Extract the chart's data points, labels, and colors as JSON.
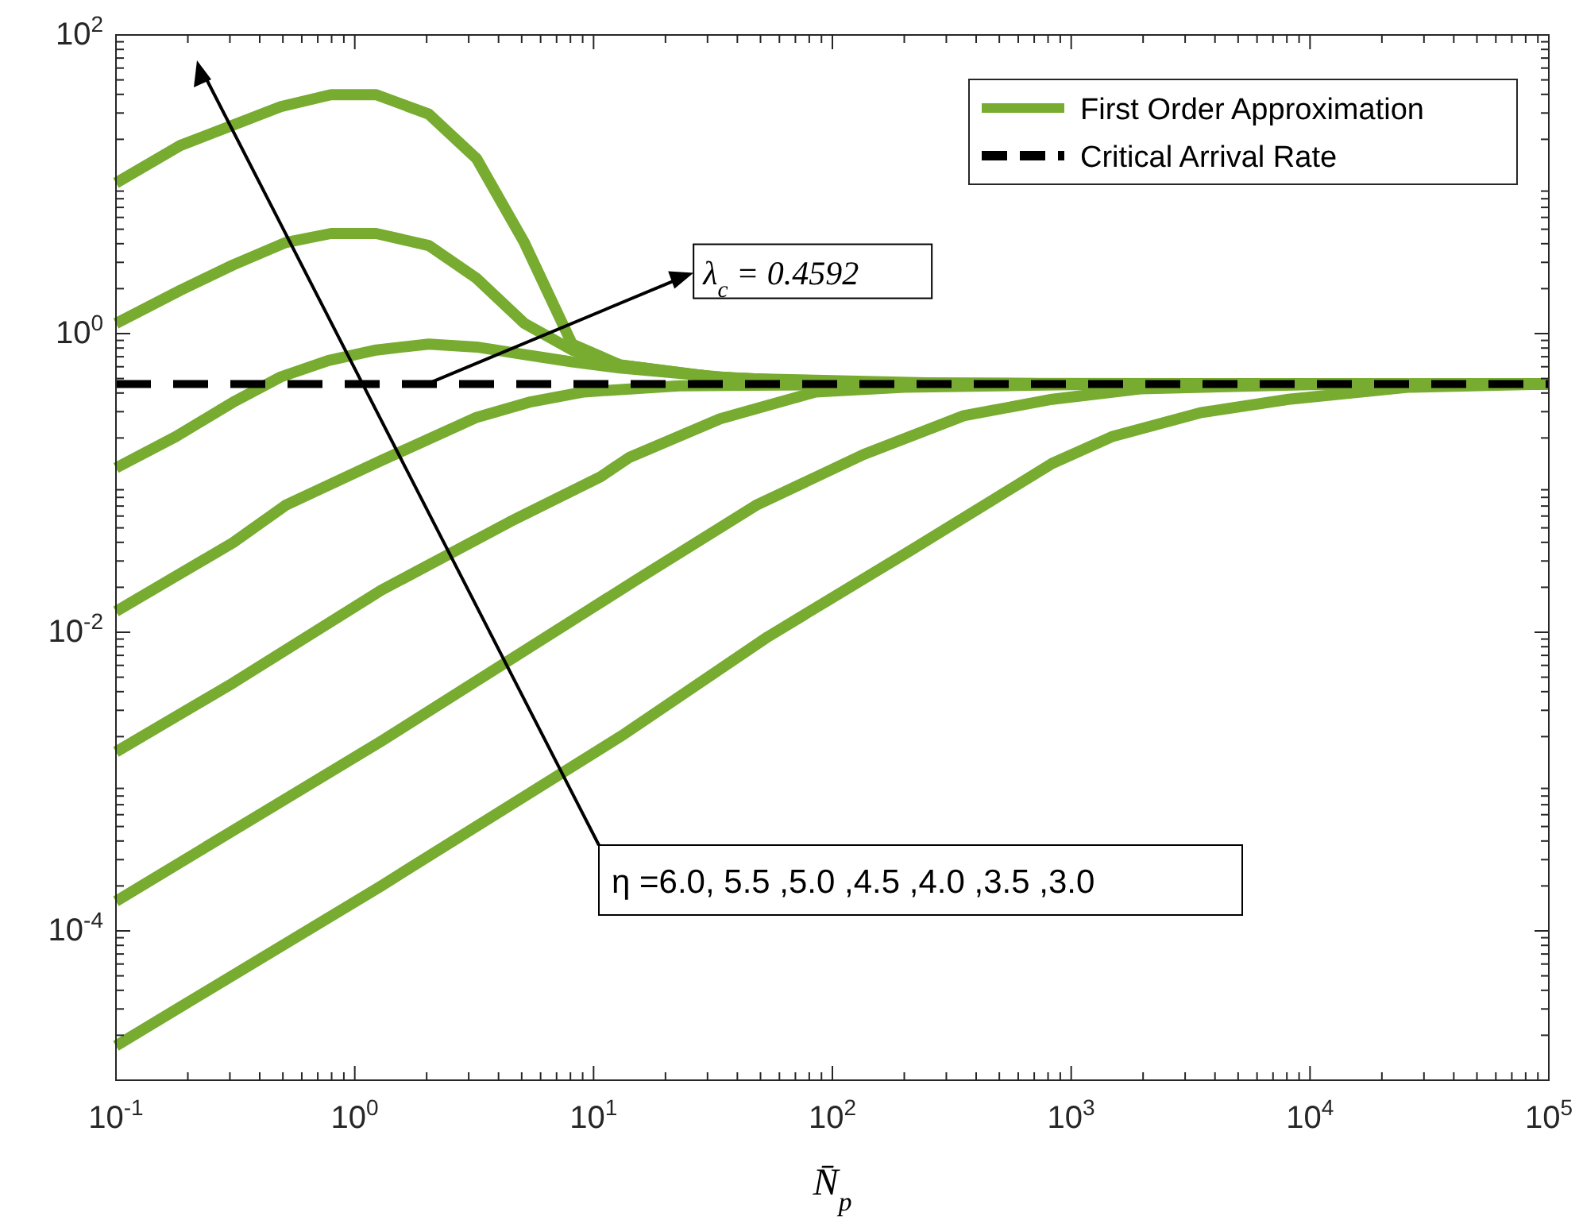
{
  "chart_data": {
    "type": "line",
    "xlabel": "N̄$_{p}$",
    "log": "xy",
    "grid": false,
    "legend": "top right",
    "marker": "none",
    "line_style": "solid",
    "xlim": [
      0.1,
      100000
    ],
    "ylim": [
      1e-05,
      100
    ],
    "xticks": [
      {
        "value": 0.1,
        "label": "10$^{-1}$"
      },
      {
        "value": 1,
        "label": "10$^{0}$"
      },
      {
        "value": 10,
        "label": "10$^{1}$"
      },
      {
        "value": 100,
        "label": "10$^{2}$"
      },
      {
        "value": 1000,
        "label": "10$^{3}$"
      },
      {
        "value": 10000,
        "label": "10$^{4}$"
      },
      {
        "value": 100000,
        "label": "10$^{5}$"
      }
    ],
    "yticks": [
      {
        "value": 0.0001,
        "label": "10$^{-4}$"
      },
      {
        "value": 0.01,
        "label": "10$^{-2}$"
      },
      {
        "value": 1,
        "label": "10$^{0}$"
      },
      {
        "value": 100,
        "label": "10$^{2}$"
      }
    ],
    "series": [
      {
        "name": "First Order Approximation",
        "color": "#77ac30",
        "x": [
          0.1,
          0.186,
          0.49,
          0.794,
          1.23,
          2.04,
          3.24,
          5.13,
          8.13,
          12.9,
          31.6,
          100,
          1000,
          100000
        ],
        "values": [
          10.2,
          18.2,
          33.1,
          39.8,
          39.8,
          29.5,
          14.8,
          4.07,
          0.851,
          0.617,
          0.513,
          0.47,
          0.461,
          0.459
        ]
      },
      {
        "color": "#77ac30",
        "x": [
          0.1,
          0.186,
          0.309,
          0.513,
          0.794,
          1.23,
          2.04,
          3.24,
          5.13,
          8.13,
          12.9,
          31.6,
          100,
          1000,
          100000
        ],
        "values": [
          1.17,
          1.95,
          2.88,
          4.07,
          4.68,
          4.68,
          3.89,
          2.34,
          1.17,
          0.776,
          0.617,
          0.513,
          0.47,
          0.461,
          0.459
        ]
      },
      {
        "color": "#77ac30",
        "x": [
          0.1,
          0.178,
          0.309,
          0.49,
          0.776,
          1.23,
          2.04,
          3.24,
          5.13,
          8.13,
          12.9,
          39.8,
          316,
          100000
        ],
        "values": [
          0.126,
          0.204,
          0.347,
          0.513,
          0.661,
          0.776,
          0.851,
          0.813,
          0.724,
          0.646,
          0.589,
          0.501,
          0.464,
          0.459
        ]
      },
      {
        "color": "#77ac30",
        "x": [
          0.1,
          0.309,
          0.513,
          1.29,
          3.24,
          5.37,
          9.12,
          22.9,
          100,
          100000
        ],
        "values": [
          0.0138,
          0.0398,
          0.0708,
          0.141,
          0.275,
          0.347,
          0.407,
          0.447,
          0.455,
          0.459
        ]
      },
      {
        "color": "#77ac30",
        "x": [
          0.1,
          0.309,
          1.29,
          4.47,
          10.7,
          14.1,
          33.9,
          85.1,
          200,
          1000,
          100000
        ],
        "values": [
          0.00158,
          0.00457,
          0.0191,
          0.055,
          0.11,
          0.148,
          0.269,
          0.407,
          0.437,
          0.455,
          0.459
        ]
      },
      {
        "color": "#77ac30",
        "x": [
          0.1,
          1.29,
          15.1,
          47.9,
          135,
          355,
          832,
          1950,
          10000,
          100000
        ],
        "values": [
          0.000158,
          0.00186,
          0.0224,
          0.0708,
          0.155,
          0.282,
          0.363,
          0.427,
          0.455,
          0.459
        ]
      },
      {
        "color": "#77ac30",
        "x": [
          0.1,
          1.29,
          13.5,
          53.7,
          214,
          832,
          1480,
          3470,
          8130,
          25700,
          100000
        ],
        "values": [
          1.7e-05,
          0.0002,
          0.00209,
          0.00933,
          0.0355,
          0.135,
          0.204,
          0.295,
          0.363,
          0.437,
          0.459
        ]
      }
    ],
    "ref_lines": [
      {
        "axis": "y",
        "value": 0.4592,
        "label": "Critical Arrival Rate",
        "color": "#000000",
        "line_style": "dashed"
      }
    ],
    "annotations": [
      {
        "text": "λ$_{c}$ = 0.4592",
        "x": 2,
        "y": 0.4592
      },
      "η =6.0, 5.5 ,5.0 ,4.5 ,4.0 ,3.5 ,3.0"
    ]
  }
}
